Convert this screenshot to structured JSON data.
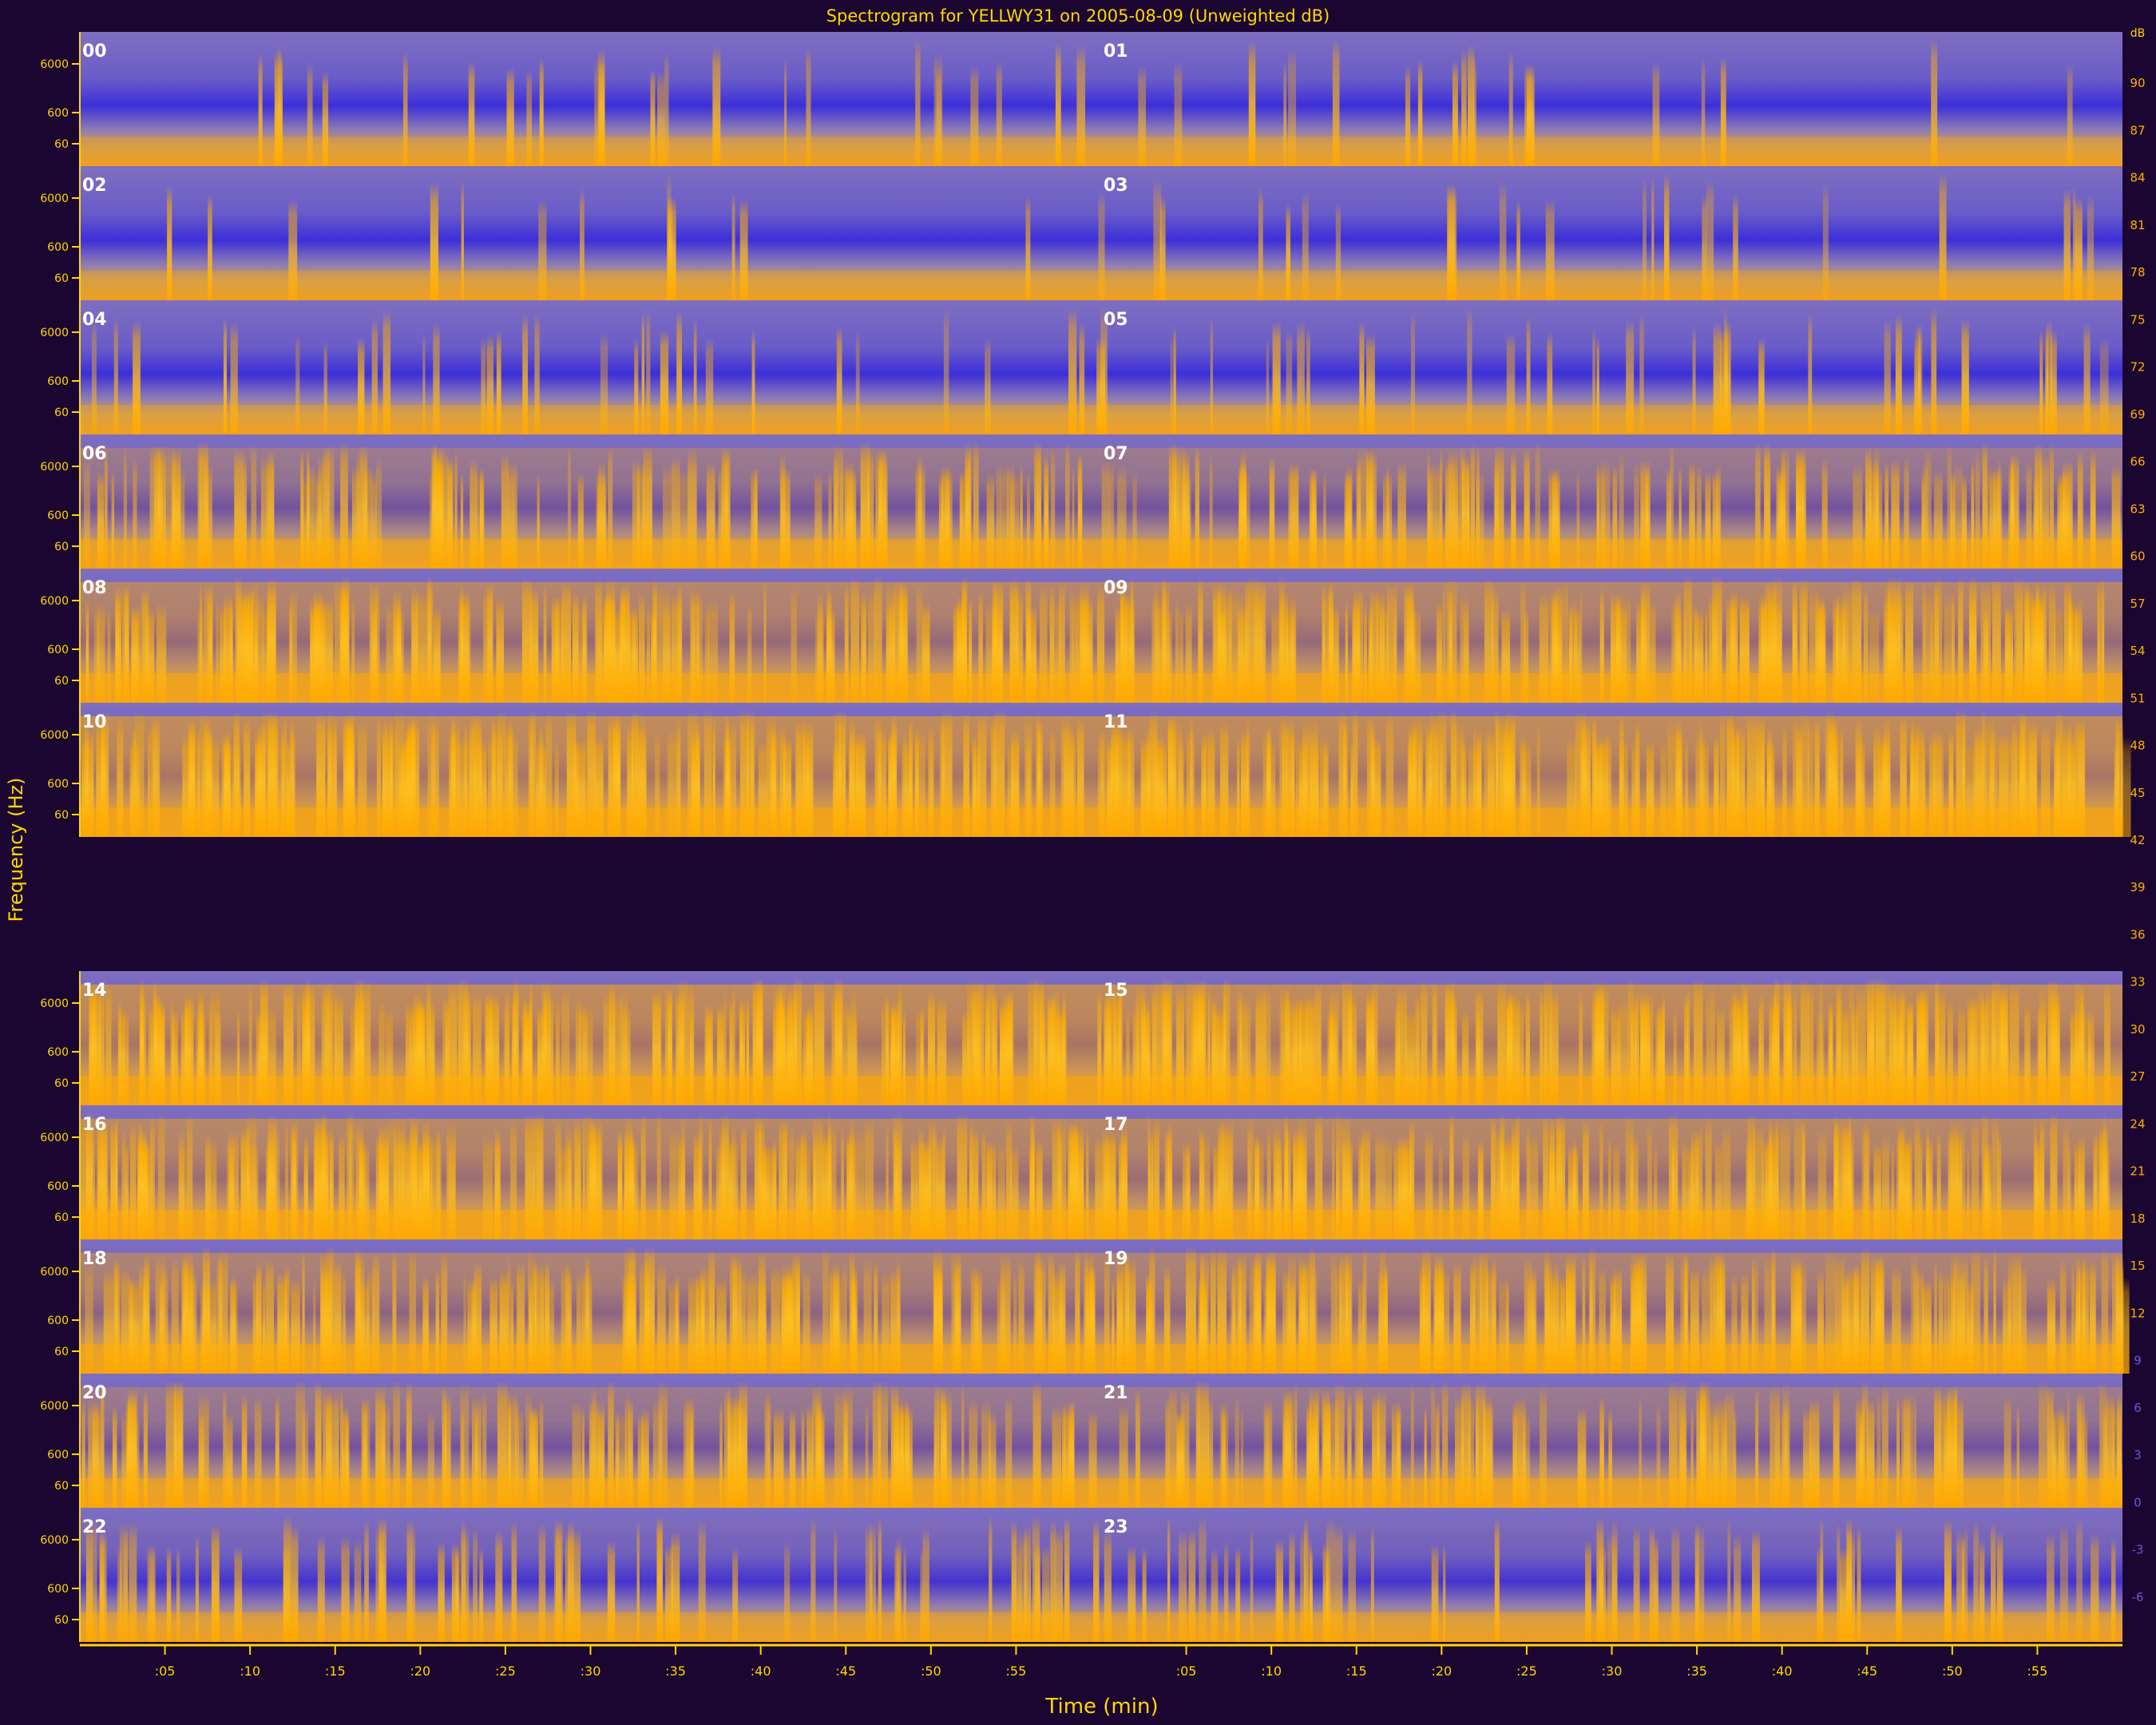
{
  "chart_data": {
    "type": "heatmap",
    "title": "Spectrogram for YELLWY31 on 2005-08-09 (Unweighted dB)",
    "xlabel": "Time (min)",
    "ylabel": "Frequency (Hz)",
    "colorbar_unit": "dB",
    "colorbar_ticks": [
      "90",
      "87",
      "84",
      "81",
      "78",
      "75",
      "72",
      "69",
      "66",
      "63",
      "60",
      "57",
      "54",
      "51",
      "48",
      "45",
      "42",
      "39",
      "36",
      "33",
      "30",
      "27",
      "24",
      "21",
      "18",
      "15",
      "12",
      "9",
      "6",
      "3",
      "0",
      "-3",
      "-6"
    ],
    "colorbar_range": [
      -9,
      93
    ],
    "y_tick_labels": [
      "6000",
      "600",
      "60"
    ],
    "x_tick_labels_left": [
      ":05",
      ":10",
      ":15",
      ":20",
      ":25",
      ":30",
      ":35",
      ":40",
      ":45",
      ":50",
      ":55"
    ],
    "x_tick_labels_right": [
      ":05",
      ":10",
      ":15",
      ":20",
      ":25",
      ":30",
      ":35",
      ":40",
      ":45",
      ":50",
      ":55"
    ],
    "rows": [
      {
        "left_hour": "00",
        "right_hour": "01",
        "activity": 0.08
      },
      {
        "left_hour": "02",
        "right_hour": "03",
        "activity": 0.06
      },
      {
        "left_hour": "04",
        "right_hour": "05",
        "activity": 0.15
      },
      {
        "left_hour": "06",
        "right_hour": "07",
        "activity": 0.55
      },
      {
        "left_hour": "08",
        "right_hour": "09",
        "activity": 0.75
      },
      {
        "left_hour": "10",
        "right_hour": "11",
        "activity": 0.85
      },
      {
        "left_hour": "",
        "right_hour": "",
        "activity": null
      },
      {
        "left_hour": "14",
        "right_hour": "15",
        "activity": 0.85
      },
      {
        "left_hour": "16",
        "right_hour": "17",
        "activity": 0.78
      },
      {
        "left_hour": "18",
        "right_hour": "19",
        "activity": 0.7
      },
      {
        "left_hour": "20",
        "right_hour": "21",
        "activity": 0.55
      },
      {
        "left_hour": "22",
        "right_hour": "23",
        "activity": 0.3
      }
    ]
  }
}
